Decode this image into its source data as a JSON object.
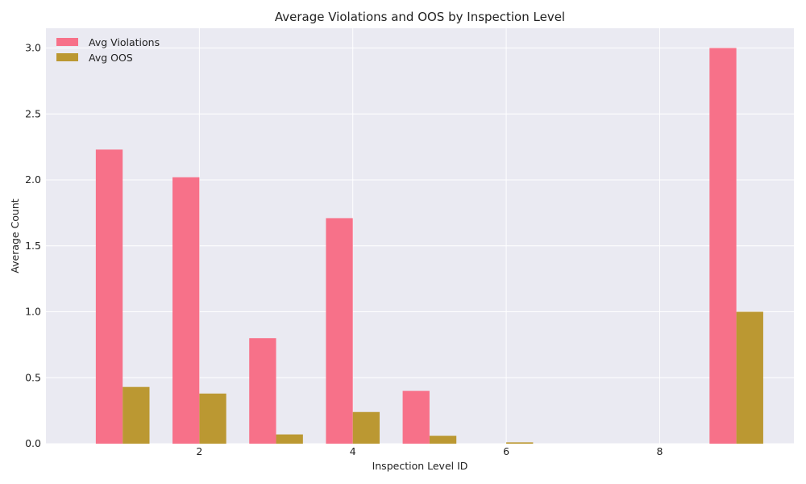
{
  "chart_data": {
    "type": "bar",
    "title": "Average Violations and OOS by Inspection Level",
    "xlabel": "Inspection Level ID",
    "ylabel": "Average Count",
    "x": [
      1,
      2,
      3,
      4,
      5,
      6,
      7,
      8,
      9
    ],
    "xlim": [
      0.0,
      9.75
    ],
    "ylim": [
      0,
      3.15
    ],
    "xticks": [
      2,
      4,
      6,
      8
    ],
    "xtick_labels": [
      "2",
      "4",
      "6",
      "8"
    ],
    "yticks": [
      0.0,
      0.5,
      1.0,
      1.5,
      2.0,
      2.5,
      3.0
    ],
    "ytick_labels": [
      "0.0",
      "0.5",
      "1.0",
      "1.5",
      "2.0",
      "2.5",
      "3.0"
    ],
    "grid": true,
    "legend_position": "top-left",
    "series": [
      {
        "name": "Avg Violations",
        "color": "#f77189",
        "values": [
          2.23,
          2.02,
          0.8,
          1.71,
          0.4,
          0.0,
          0.0,
          0.0,
          3.0
        ]
      },
      {
        "name": "Avg OOS",
        "color": "#bb9832",
        "values": [
          0.43,
          0.38,
          0.07,
          0.24,
          0.06,
          0.01,
          0.0,
          0.0,
          1.0
        ]
      }
    ],
    "background": "#eaeaf2"
  }
}
